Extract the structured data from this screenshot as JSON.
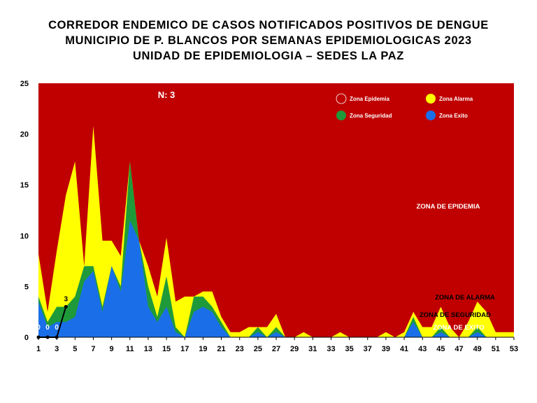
{
  "title_lines": [
    "CORREDOR ENDEMICO DE CASOS NOTIFICADOS POSITIVOS DE DENGUE",
    "MUNICIPIO DE P. BLANCOS  POR SEMANAS EPIDEMIOLOGICAS 2023",
    "UNIDAD DE EPIDEMIOLOGIA – SEDES LA PAZ"
  ],
  "n_label": "N: 3",
  "legend": [
    {
      "label": "Zona Epidemia",
      "color": "#c00000"
    },
    {
      "label": "Zona Alarma",
      "color": "#ffff00"
    },
    {
      "label": "Zona Seguridad",
      "color": "#1e9a3a"
    },
    {
      "label": "Zona Exito",
      "color": "#1a6fe8"
    }
  ],
  "zone_labels": {
    "epidemia": "ZONA DE EPIDEMIA",
    "alarma": "ZONA DE ALARMA",
    "seguridad": "ZONA DE  SEGURIDAD",
    "exito": "ZONA DE  EXITO"
  },
  "chart_data": {
    "type": "area",
    "weeks": [
      1,
      2,
      3,
      4,
      5,
      6,
      7,
      8,
      9,
      10,
      11,
      12,
      13,
      14,
      15,
      16,
      17,
      18,
      19,
      20,
      21,
      22,
      23,
      24,
      25,
      26,
      27,
      28,
      29,
      30,
      31,
      32,
      33,
      34,
      35,
      36,
      37,
      38,
      39,
      40,
      41,
      42,
      43,
      44,
      45,
      46,
      47,
      48,
      49,
      50,
      51,
      52,
      53
    ],
    "ylim": [
      0,
      25
    ],
    "yticks": [
      0,
      5,
      10,
      15,
      20,
      25
    ],
    "xticks": [
      1,
      3,
      5,
      7,
      9,
      11,
      13,
      15,
      17,
      19,
      21,
      23,
      25,
      27,
      29,
      31,
      33,
      35,
      37,
      39,
      41,
      43,
      45,
      47,
      49,
      51,
      53
    ],
    "colors": {
      "epidemia": "#c00000",
      "alarma": "#ffff00",
      "seguridad": "#1e9a3a",
      "exito": "#1a6fe8",
      "cases": "#000000"
    },
    "series": [
      {
        "name": "Zona Alarma",
        "values": [
          8.2,
          2.5,
          8.5,
          14,
          17.3,
          7,
          20.8,
          9.5,
          9.5,
          8,
          17.3,
          9.5,
          7,
          4,
          9.8,
          3.5,
          4,
          4,
          4.5,
          4.5,
          2,
          0.5,
          0.5,
          1,
          1,
          1,
          2.3,
          0,
          0,
          0.5,
          0,
          0,
          0,
          0.5,
          0,
          0,
          0,
          0,
          0.5,
          0,
          0.5,
          2.5,
          1,
          1,
          3,
          1,
          0,
          1.5,
          3.5,
          2.5,
          0.5,
          0.5,
          0.5
        ]
      },
      {
        "name": "Zona Seguridad",
        "values": [
          4,
          1.5,
          3,
          3,
          4,
          7,
          7,
          3,
          7,
          5,
          17.3,
          9.5,
          5,
          2,
          6,
          1,
          0,
          4,
          4,
          3,
          1.5,
          0,
          0,
          0,
          1,
          0,
          1,
          0,
          0,
          0,
          0,
          0,
          0,
          0,
          0,
          0,
          0,
          0,
          0,
          0,
          0,
          2,
          0,
          0,
          1,
          0,
          0,
          0,
          1,
          0,
          0,
          0,
          0
        ]
      },
      {
        "name": "Zona Exito",
        "values": [
          3.5,
          1,
          1.5,
          1.5,
          2,
          5.5,
          6.5,
          2.5,
          7,
          4.5,
          11.5,
          9.5,
          3,
          1.5,
          3,
          0.5,
          0,
          2.5,
          3,
          2.5,
          1,
          0,
          0,
          0,
          0.5,
          0,
          0.5,
          0,
          0,
          0,
          0,
          0,
          0,
          0,
          0,
          0,
          0,
          0,
          0,
          0,
          0,
          1.5,
          0,
          0,
          0.5,
          0,
          0,
          0,
          0.5,
          0,
          0,
          0,
          0
        ]
      },
      {
        "name": "casos",
        "values": [
          0,
          0,
          0,
          3
        ]
      }
    ],
    "data_labels": [
      {
        "week": 1,
        "text": "0"
      },
      {
        "week": 2,
        "text": "0"
      },
      {
        "week": 3,
        "text": "0"
      },
      {
        "week": 4,
        "text": "3"
      }
    ]
  }
}
